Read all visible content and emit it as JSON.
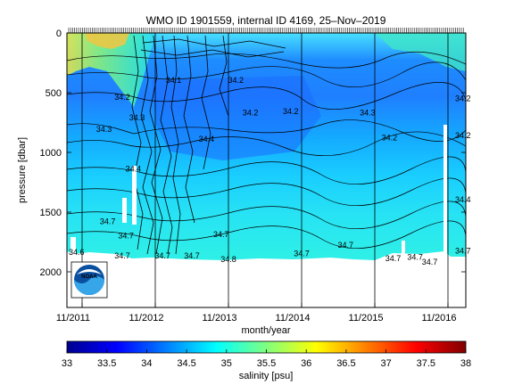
{
  "chart_data": {
    "type": "heatmap",
    "title": "WMO ID 1901559, internal ID 4169, 25–Nov–2019",
    "xlabel": "month/year",
    "ylabel": "pressure [dbar]",
    "x_tick_labels": [
      "11/2011",
      "11/2012",
      "11/2013",
      "11/2014",
      "11/2015",
      "11/2016"
    ],
    "y_tick_labels": [
      "0",
      "500",
      "1000",
      "1500",
      "2000"
    ],
    "y_ticks": [
      0,
      500,
      1000,
      1500,
      2000
    ],
    "ylim": [
      0,
      2300
    ],
    "y_inverted": true,
    "colorbar": {
      "label": "salinity [psu]",
      "range": [
        33,
        38
      ],
      "ticks": [
        "33",
        "33.5",
        "34",
        "34.5",
        "35",
        "35.5",
        "36",
        "36.5",
        "37",
        "37.5",
        "38"
      ],
      "colormap": "jet"
    },
    "contour_labels": [
      {
        "text": "34.1",
        "time": 2012.95,
        "pressure": 420
      },
      {
        "text": "34.2",
        "time": 2013.8,
        "pressure": 420
      },
      {
        "text": "34.2",
        "time": 2012.25,
        "pressure": 560
      },
      {
        "text": "34.2",
        "time": 2014.0,
        "pressure": 690
      },
      {
        "text": "34.2",
        "time": 2014.55,
        "pressure": 680
      },
      {
        "text": "34.2",
        "time": 2015.9,
        "pressure": 900
      },
      {
        "text": "34.2",
        "time": 2017.05,
        "pressure": 880
      },
      {
        "text": "34.3",
        "time": 2012.45,
        "pressure": 730
      },
      {
        "text": "34.3",
        "time": 2012.0,
        "pressure": 830
      },
      {
        "text": "34.3",
        "time": 2015.6,
        "pressure": 690
      },
      {
        "text": "34.2",
        "time": 2017.25,
        "pressure": 570
      },
      {
        "text": "34.4",
        "time": 2012.4,
        "pressure": 1160
      },
      {
        "text": "34.4",
        "time": 2013.4,
        "pressure": 910
      },
      {
        "text": "34.4",
        "time": 2017.3,
        "pressure": 1420
      },
      {
        "text": "34.6",
        "time": 2011.47,
        "pressure": 1860
      },
      {
        "text": "34.7",
        "time": 2012.05,
        "pressure": 1600
      },
      {
        "text": "34.7",
        "time": 2012.3,
        "pressure": 1720
      },
      {
        "text": "34.7",
        "time": 2012.25,
        "pressure": 1890
      },
      {
        "text": "34.7",
        "time": 2012.8,
        "pressure": 1890
      },
      {
        "text": "34.7",
        "time": 2013.2,
        "pressure": 1890
      },
      {
        "text": "34.7",
        "time": 2013.6,
        "pressure": 1710
      },
      {
        "text": "34.7",
        "time": 2014.7,
        "pressure": 1870
      },
      {
        "text": "34.7",
        "time": 2015.3,
        "pressure": 1800
      },
      {
        "text": "34.7",
        "time": 2015.95,
        "pressure": 1910
      },
      {
        "text": "34.7",
        "time": 2016.25,
        "pressure": 1900
      },
      {
        "text": "34.7",
        "time": 2016.45,
        "pressure": 1940
      },
      {
        "text": "34.7",
        "time": 2017.4,
        "pressure": 1850
      },
      {
        "text": "34.8",
        "time": 2013.7,
        "pressure": 1920
      }
    ],
    "profile_markers": "dense tick marks along top axis (one per profile)",
    "vertical_lines_at": [
      2011.97,
      2013.0,
      2014.0,
      2015.0,
      2016.0,
      2017.0
    ],
    "grid": false,
    "logo": "NOAA"
  }
}
